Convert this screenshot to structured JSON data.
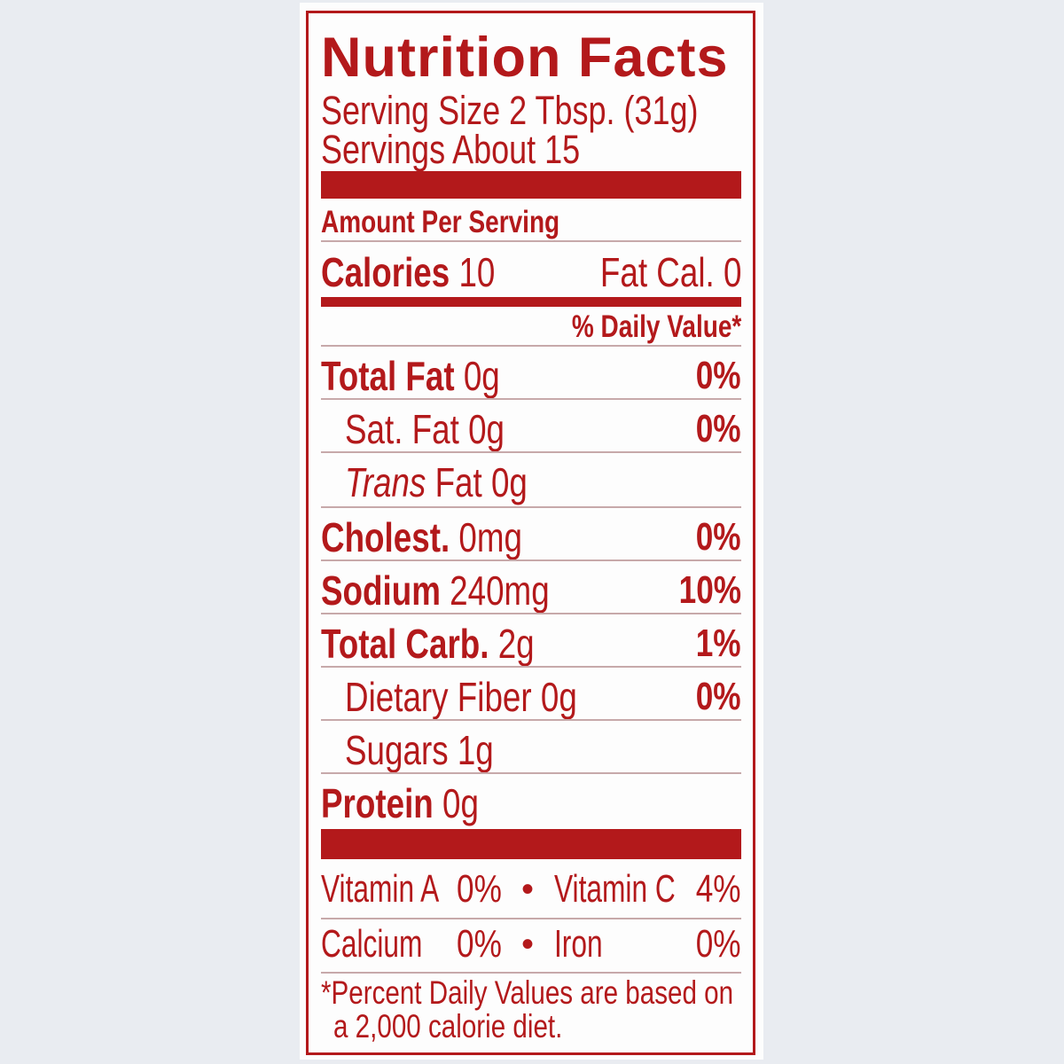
{
  "title": "Nutrition Facts",
  "serving_size": "Serving Size 2 Tbsp. (31g)",
  "servings": "Servings About 15",
  "amount_per_serving": "Amount Per Serving",
  "calories_label": "Calories",
  "calories_value": "10",
  "fat_calories": "Fat Cal. 0",
  "daily_value_header": "% Daily Value*",
  "nutrients": [
    {
      "name": "Total Fat",
      "amount": "0g",
      "dv": "0%"
    },
    {
      "name": "Sat. Fat",
      "amount": "0g",
      "dv": "0%"
    },
    {
      "name": "Trans",
      "amount": "Fat 0g",
      "dv": ""
    },
    {
      "name": "Cholest.",
      "amount": "0mg",
      "dv": "0%"
    },
    {
      "name": "Sodium",
      "amount": "240mg",
      "dv": "10%"
    },
    {
      "name": "Total Carb.",
      "amount": "2g",
      "dv": "1%"
    },
    {
      "name": "Dietary Fiber",
      "amount": "0g",
      "dv": "0%"
    },
    {
      "name": "Sugars",
      "amount": "1g",
      "dv": ""
    },
    {
      "name": "Protein",
      "amount": "0g",
      "dv": ""
    }
  ],
  "vitamins": [
    {
      "name": "Vitamin A",
      "value": "0%"
    },
    {
      "name": "Vitamin C",
      "value": "4%"
    },
    {
      "name": "Calcium",
      "value": "0%"
    },
    {
      "name": "Iron",
      "value": "0%"
    }
  ],
  "bullet": "•",
  "footnote_line1": "*Percent Daily Values are based on",
  "footnote_line2": "a 2,000 calorie diet.",
  "colors": {
    "label_red": "#b3191b",
    "background": "#e9ecf1"
  }
}
